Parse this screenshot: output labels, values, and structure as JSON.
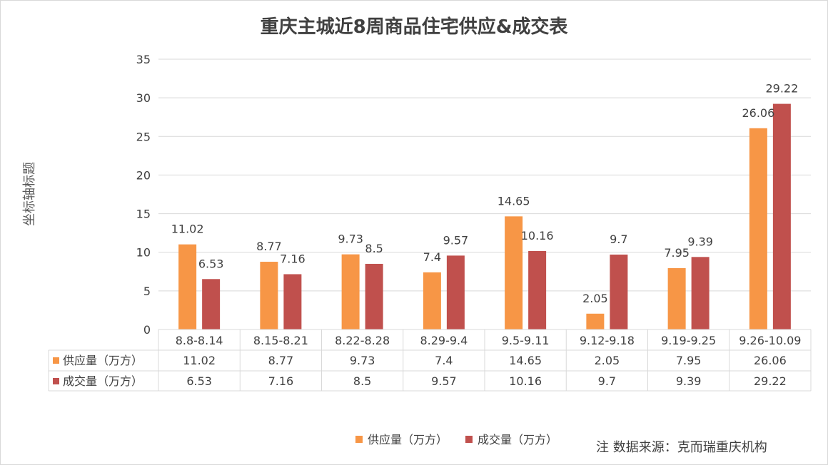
{
  "chart_data": {
    "type": "bar",
    "title": "重庆主城近8周商品住宅供应&成交表",
    "ylabel": "坐标轴标题",
    "xlabel": "",
    "ylim": [
      0,
      35
    ],
    "yticks": [
      0,
      5,
      10,
      15,
      20,
      25,
      30,
      35
    ],
    "grid": true,
    "legend_position": "bottom",
    "categories": [
      "8.8-8.14",
      "8.15-8.21",
      "8.22-8.28",
      "8.29-9.4",
      "9.5-9.11",
      "9.12-9.18",
      "9.19-9.25",
      "9.26-10.09"
    ],
    "series": [
      {
        "name": "供应量（万方）",
        "color": "#f79646",
        "values": [
          11.02,
          8.77,
          9.73,
          7.4,
          14.65,
          2.05,
          7.95,
          26.06
        ]
      },
      {
        "name": "成交量（万方）",
        "color": "#c0504d",
        "values": [
          6.53,
          7.16,
          8.5,
          9.57,
          10.16,
          9.7,
          9.39,
          29.22
        ]
      }
    ],
    "data_table": true
  },
  "note": "注  数据来源：克而瑞重庆机构"
}
